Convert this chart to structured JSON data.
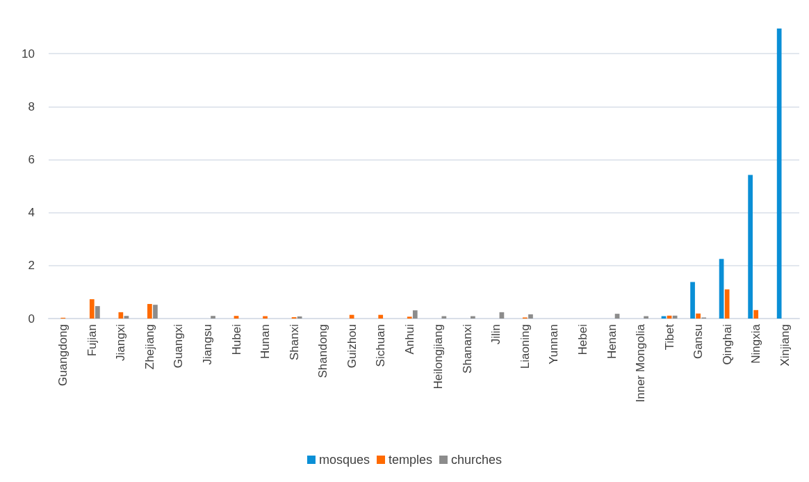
{
  "chart_data": {
    "type": "bar",
    "categories": [
      "Guangdong",
      "Fujian",
      "Jiangxi",
      "Zhejiang",
      "Guangxi",
      "Jiangsu",
      "Hubei",
      "Hunan",
      "Shanxi",
      "Shandong",
      "Guizhou",
      "Sichuan",
      "Anhui",
      "Heilongjiang",
      "Shananxi",
      "Jilin",
      "Liaoning",
      "Yunnan",
      "Hebei",
      "Henan",
      "Inner Mongolia",
      "Tibet",
      "Gansu",
      "Qinghai",
      "Ningxia",
      "Xinjiang"
    ],
    "series": [
      {
        "name": "mosques",
        "color": "#0a8fd6",
        "values": [
          0,
          0,
          0,
          0,
          0,
          0,
          0,
          0,
          0,
          0,
          0,
          0,
          0,
          0,
          0,
          0,
          0,
          0,
          0,
          0,
          0,
          0.09,
          1.38,
          2.25,
          5.42,
          10.95
        ]
      },
      {
        "name": "temples",
        "color": "#ff6a00",
        "values": [
          0.03,
          0.73,
          0.24,
          0.55,
          0,
          0,
          0.1,
          0.09,
          0.05,
          0,
          0.14,
          0.14,
          0.07,
          0,
          0,
          0,
          0.04,
          0,
          0,
          0,
          0,
          0.11,
          0.19,
          1.1,
          0.32,
          0
        ]
      },
      {
        "name": "churches",
        "color": "#8c8c8c",
        "values": [
          0,
          0.47,
          0.1,
          0.52,
          0,
          0.1,
          0,
          0,
          0.08,
          0,
          0,
          0,
          0.31,
          0.09,
          0.09,
          0.24,
          0.16,
          0,
          0,
          0.18,
          0.09,
          0.11,
          0.04,
          0,
          0,
          0
        ]
      }
    ],
    "ylim": [
      0,
      11
    ],
    "yticks": [
      0,
      2,
      4,
      6,
      8,
      10
    ],
    "grid": "y",
    "legend": "bottom"
  }
}
